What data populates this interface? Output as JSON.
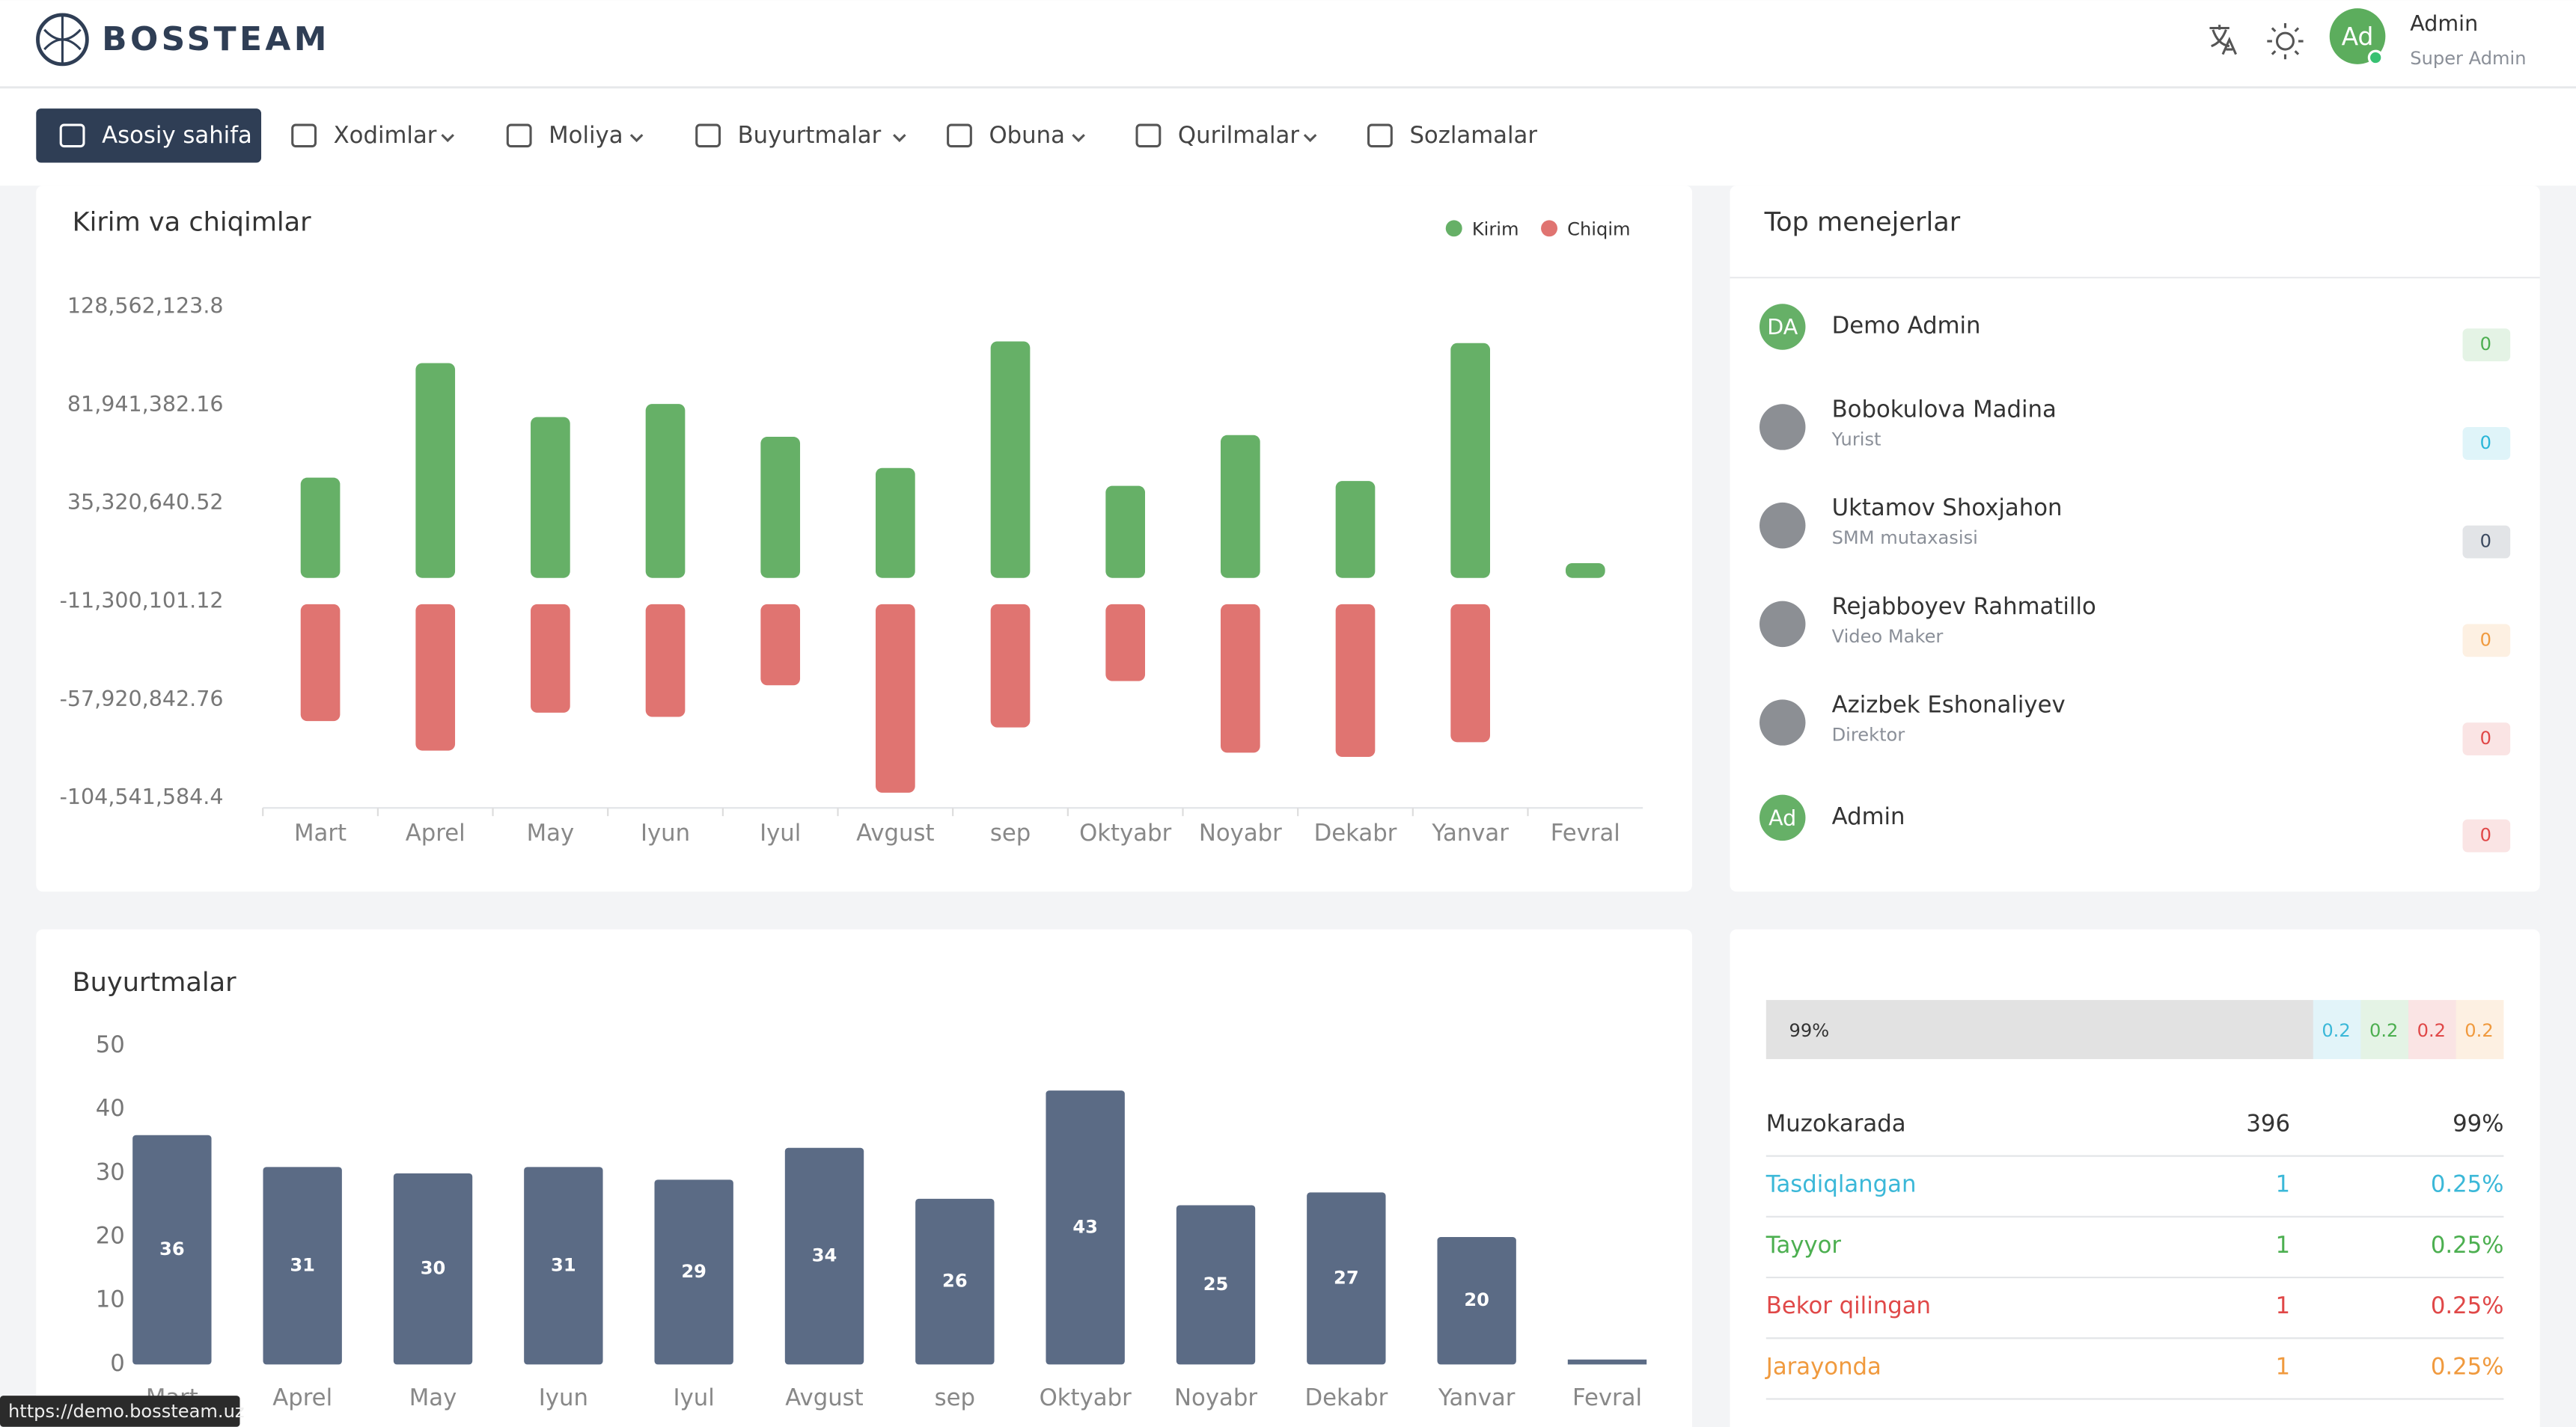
{
  "header": {
    "brand": "BOSSTEAM",
    "avatar": "Ad",
    "user_name": "Admin",
    "user_role": "Super Admin"
  },
  "nav": [
    "Asosiy sahifa",
    "Xodimlar",
    "Moliya",
    "Buyurtmalar",
    "Obuna",
    "Qurilmalar",
    "Sozlamalar"
  ],
  "chart_data": [
    {
      "type": "bar",
      "title": "Kirim va chiqimlar",
      "categories": [
        "Mart",
        "Aprel",
        "May",
        "Iyun",
        "Iyul",
        "Avgust",
        "sep",
        "Oktyabr",
        "Noyabr",
        "Dekabr",
        "Yanvar",
        "Fevral"
      ],
      "series": [
        {
          "name": "Kirim",
          "color": "#66b067",
          "values": [
            47600000,
            102000000,
            76400000,
            82600000,
            67000000,
            52200000,
            112300000,
            43700000,
            67800000,
            46000000,
            111500000,
            7000000
          ]
        },
        {
          "name": "Chiqim",
          "color": "#e07471",
          "values": [
            -68000000,
            -82000000,
            -64000000,
            -66000000,
            -51000000,
            -102000000,
            -71000000,
            -49000000,
            -83000000,
            -85000000,
            -78000000,
            0
          ]
        }
      ],
      "ylim": [
        -104541584.4,
        128562123.8
      ],
      "yticks": [
        {
          "value": 128562123.8,
          "label": "128,562,123.8"
        },
        {
          "value": 81941382.16,
          "label": "81,941,382.16"
        },
        {
          "value": 35320640.52,
          "label": "35,320,640.52"
        },
        {
          "value": -11300101.12,
          "label": "-11,300,101.12"
        },
        {
          "value": -57920842.76,
          "label": "-57,920,842.76"
        },
        {
          "value": -104541584.4,
          "label": "-104,541,584.4"
        }
      ],
      "legend": "top-right"
    },
    {
      "type": "bar",
      "title": "Buyurtmalar",
      "categories": [
        "Mart",
        "Aprel",
        "May",
        "Iyun",
        "Iyul",
        "Avgust",
        "sep",
        "Oktyabr",
        "Noyabr",
        "Dekabr",
        "Yanvar",
        "Fevral"
      ],
      "values": [
        36,
        31,
        30,
        31,
        29,
        34,
        26,
        43,
        25,
        27,
        20,
        0
      ],
      "color": "#5b6b85",
      "ylim": [
        0,
        50
      ],
      "yticks": [
        0,
        10,
        20,
        30,
        40,
        50
      ]
    }
  ],
  "managers": {
    "title": "Top menejerlar",
    "items": [
      {
        "initials": "DA",
        "name": "Demo Admin",
        "count": 0,
        "color": "#4caf50"
      },
      {
        "name": "Bobokulova Madina",
        "role": "Yurist",
        "count": 0,
        "color": "#29b6d8"
      },
      {
        "name": "Uktamov Shoxjahon",
        "role": "SMM mutaxasisi",
        "count": 0,
        "color": "#3c4a60"
      },
      {
        "name": "Rejabboyev Rahmatillo",
        "role": "Video Maker",
        "count": 0,
        "color": "#f09a3e"
      },
      {
        "name": "Azizbek Eshonaliyev",
        "role": "Direktor",
        "count": 0,
        "color": "#e04848"
      },
      {
        "initials": "Ad",
        "name": "Admin",
        "count": 0,
        "color": "#e04848"
      }
    ]
  },
  "statuses": {
    "bar_labels": [
      "99%",
      "0.2",
      "0.2",
      "0.2",
      "0.2"
    ],
    "rows": [
      {
        "label": "Muzokarada",
        "count": 396,
        "percent": "99%",
        "color": "#333333"
      },
      {
        "label": "Tasdiqlangan",
        "count": 1,
        "percent": "0.25%",
        "color": "#3bb8d8"
      },
      {
        "label": "Tayyor",
        "count": 1,
        "percent": "0.25%",
        "color": "#4caf50"
      },
      {
        "label": "Bekor qilingan",
        "count": 1,
        "percent": "0.25%",
        "color": "#e04848"
      },
      {
        "label": "Jarayonda",
        "count": 1,
        "percent": "0.25%",
        "color": "#f09a3e"
      }
    ]
  },
  "status_bar": "https://demo.bossteam.uz"
}
